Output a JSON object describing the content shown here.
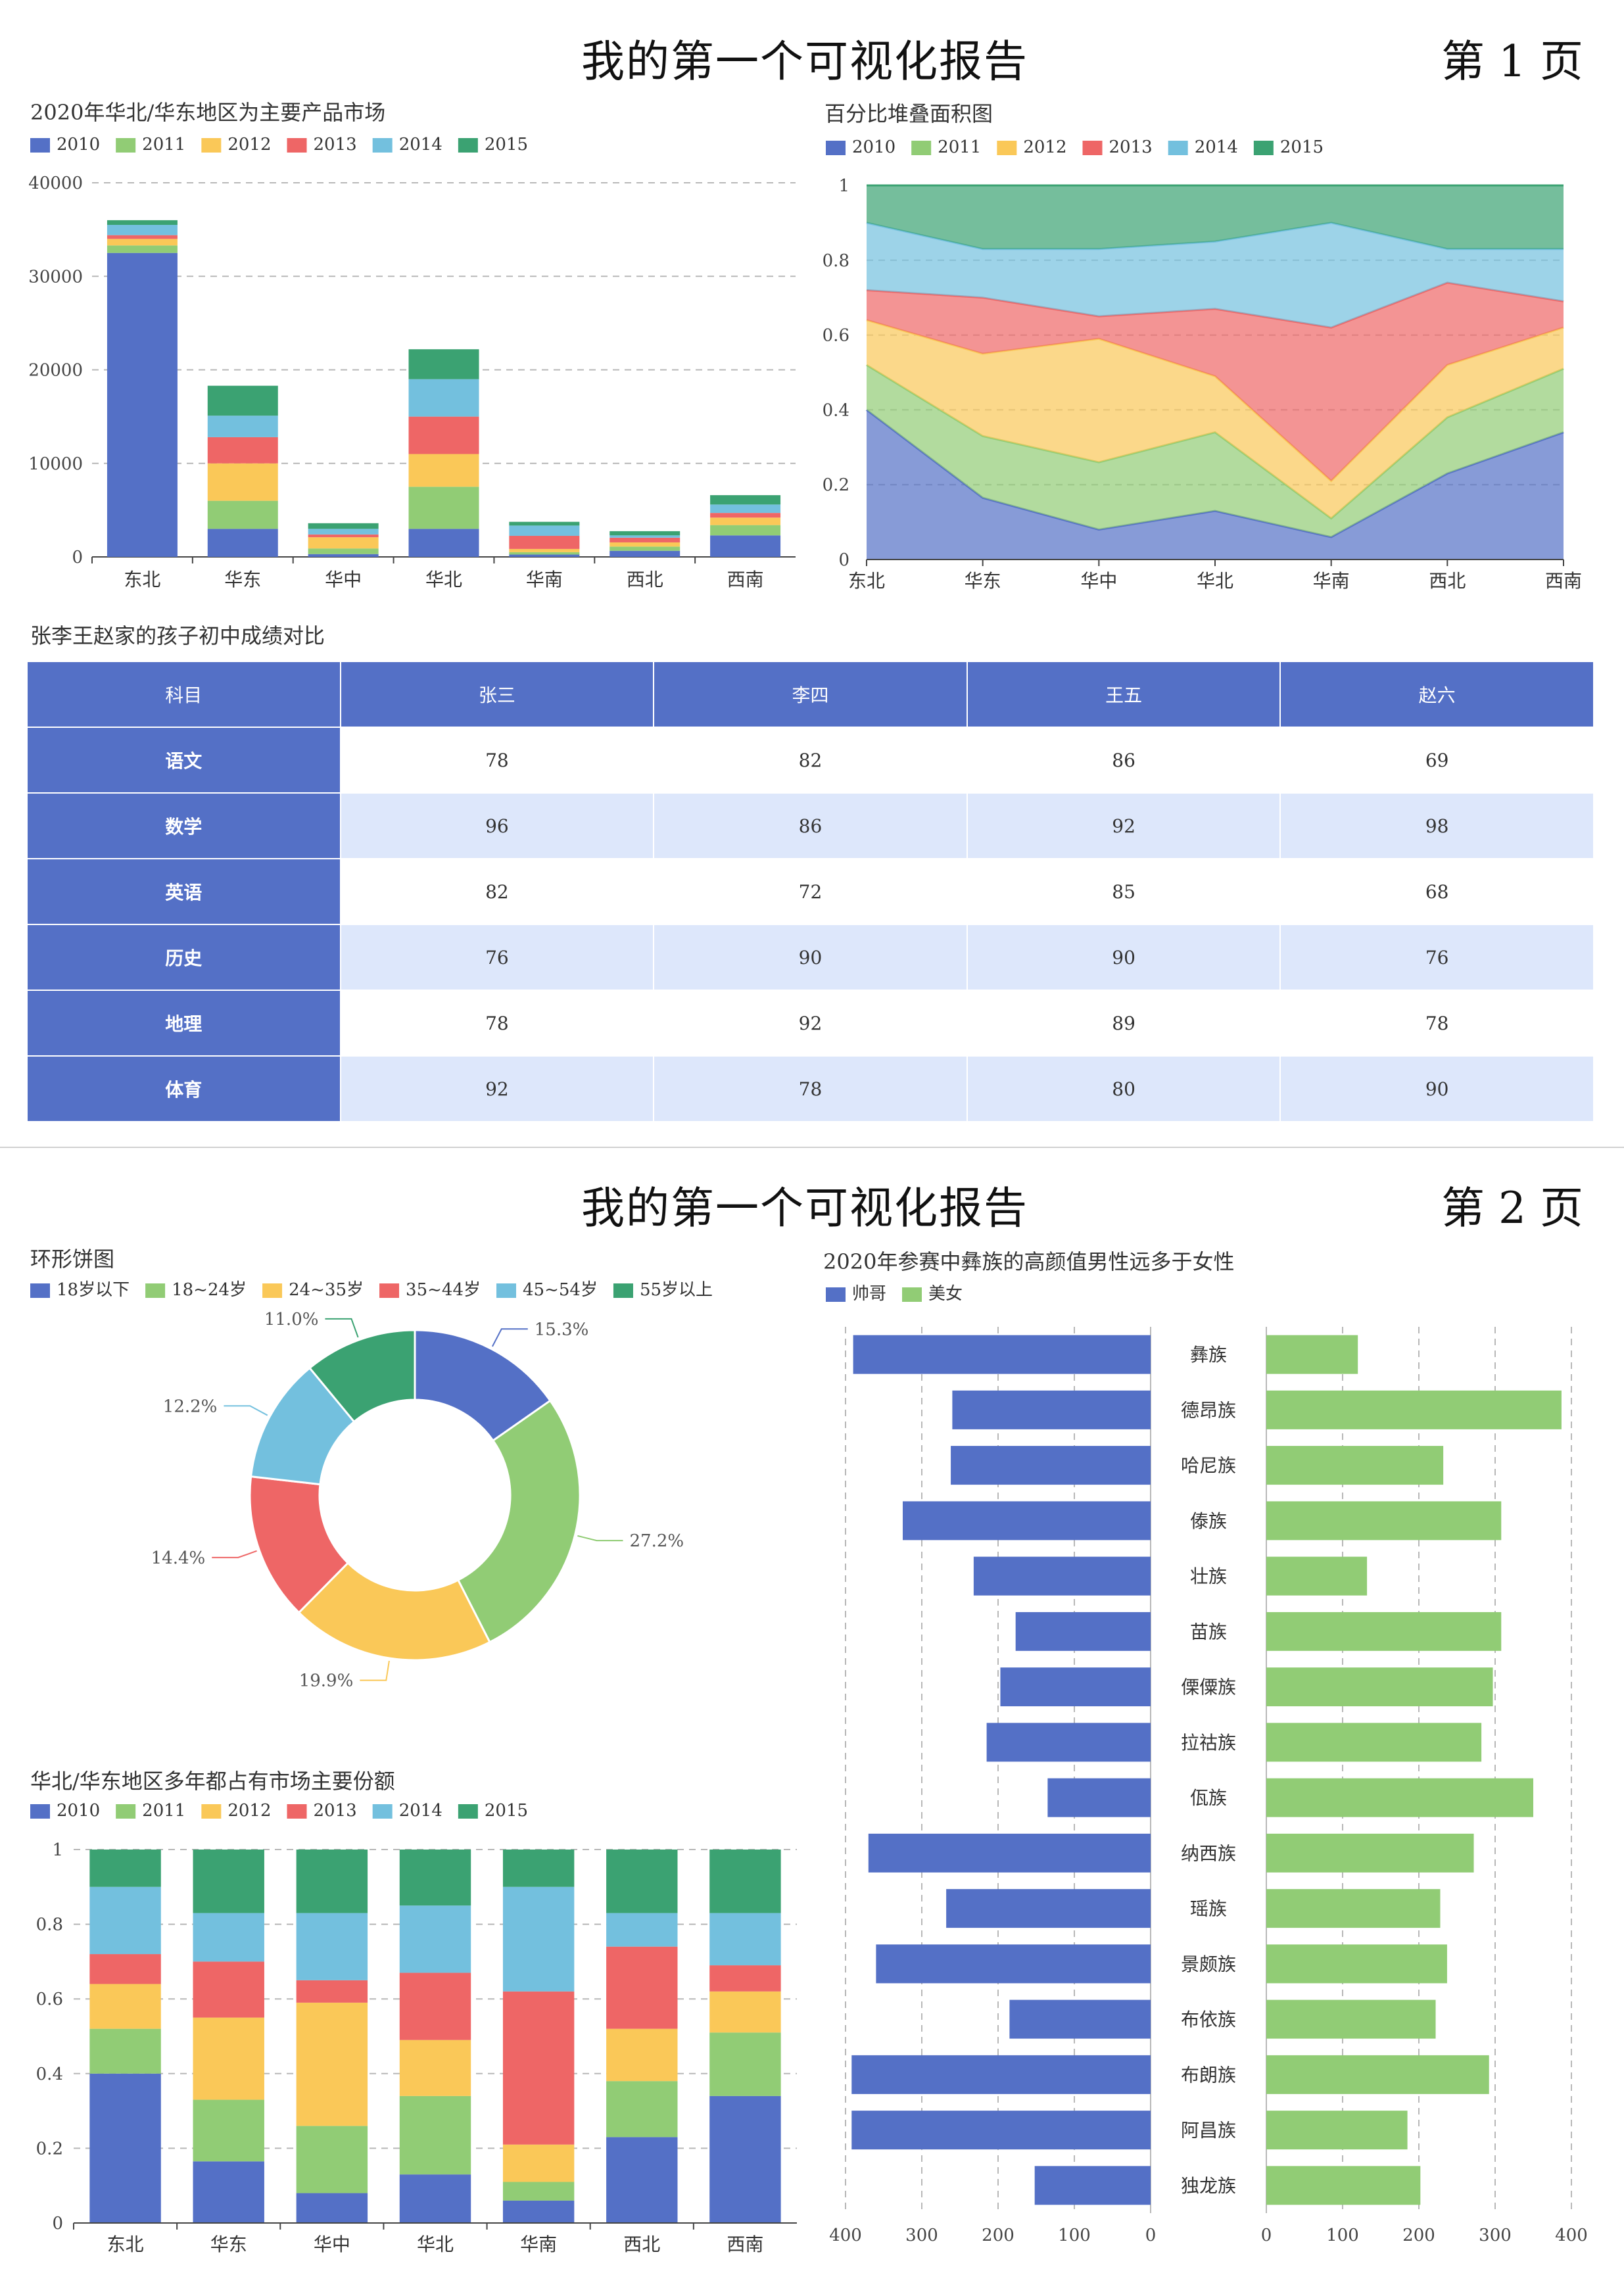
{
  "pages": [
    {
      "title": "我的第一个可视化报告",
      "page_label": "第 1 页"
    },
    {
      "title": "我的第一个可视化报告",
      "page_label": "第 2 页"
    }
  ],
  "palette": {
    "2010": "#5470c6",
    "2011": "#91cc75",
    "2012": "#fac858",
    "2013": "#ee6666",
    "2014": "#73c0de",
    "2015": "#3ba272"
  },
  "chart_data": [
    {
      "id": "stacked-bar",
      "type": "bar",
      "title": "2020年华北/华东地区为主要产品市场",
      "categories": [
        "东北",
        "华东",
        "华中",
        "华北",
        "华南",
        "西北",
        "西南"
      ],
      "ylim": [
        0,
        40000
      ],
      "yticks": [
        0,
        10000,
        20000,
        30000,
        40000
      ],
      "legend_position": "top-left",
      "series": [
        {
          "name": "2010",
          "values": [
            32500,
            3000,
            300,
            3000,
            250,
            650,
            2300
          ]
        },
        {
          "name": "2011",
          "values": [
            800,
            3000,
            600,
            4500,
            250,
            450,
            1100
          ]
        },
        {
          "name": "2012",
          "values": [
            700,
            4000,
            1200,
            3500,
            350,
            450,
            800
          ]
        },
        {
          "name": "2013",
          "values": [
            400,
            2800,
            300,
            4000,
            1400,
            500,
            500
          ]
        },
        {
          "name": "2014",
          "values": [
            1100,
            2300,
            600,
            4000,
            1100,
            250,
            900
          ]
        },
        {
          "name": "2015",
          "values": [
            500,
            3200,
            600,
            3200,
            400,
            450,
            1000
          ]
        }
      ]
    },
    {
      "id": "percent-area",
      "type": "area",
      "title": "百分比堆叠面积图",
      "categories": [
        "东北",
        "华东",
        "华中",
        "华北",
        "华南",
        "西北",
        "西南"
      ],
      "ylim": [
        0,
        1
      ],
      "yticks": [
        "0",
        "0.2",
        "0.4",
        "0.6",
        "0.8",
        "1"
      ],
      "legend_position": "top-left",
      "series": [
        {
          "name": "2010",
          "values": [
            0.4,
            0.165,
            0.08,
            0.13,
            0.06,
            0.23,
            0.34
          ]
        },
        {
          "name": "2011",
          "values": [
            0.12,
            0.165,
            0.18,
            0.21,
            0.05,
            0.15,
            0.17
          ]
        },
        {
          "name": "2012",
          "values": [
            0.12,
            0.22,
            0.33,
            0.15,
            0.1,
            0.14,
            0.11
          ]
        },
        {
          "name": "2013",
          "values": [
            0.08,
            0.15,
            0.06,
            0.18,
            0.41,
            0.22,
            0.07
          ]
        },
        {
          "name": "2014",
          "values": [
            0.18,
            0.13,
            0.18,
            0.18,
            0.28,
            0.09,
            0.14
          ]
        },
        {
          "name": "2015",
          "values": [
            0.1,
            0.17,
            0.17,
            0.15,
            0.1,
            0.17,
            0.17
          ]
        }
      ]
    },
    {
      "id": "score-table",
      "type": "table",
      "title": "张李王赵家的孩子初中成绩对比",
      "columns": [
        "科目",
        "张三",
        "李四",
        "王五",
        "赵六"
      ],
      "rows": [
        [
          "语文",
          "78",
          "82",
          "86",
          "69"
        ],
        [
          "数学",
          "96",
          "86",
          "92",
          "98"
        ],
        [
          "英语",
          "82",
          "72",
          "85",
          "68"
        ],
        [
          "历史",
          "76",
          "90",
          "90",
          "76"
        ],
        [
          "地理",
          "78",
          "92",
          "89",
          "78"
        ],
        [
          "体育",
          "92",
          "78",
          "80",
          "90"
        ]
      ]
    },
    {
      "id": "donut",
      "type": "pie",
      "title": "环形饼图",
      "legend_position": "top-left",
      "slices": [
        {
          "name": "18岁以下",
          "value": 15.3,
          "label": "15.3%",
          "color": "#5470c6"
        },
        {
          "name": "18~24岁",
          "value": 27.2,
          "label": "27.2%",
          "color": "#91cc75"
        },
        {
          "name": "24~35岁",
          "value": 19.9,
          "label": "19.9%",
          "color": "#fac858"
        },
        {
          "name": "35~44岁",
          "value": 14.4,
          "label": "14.4%",
          "color": "#ee6666"
        },
        {
          "name": "45~54岁",
          "value": 12.2,
          "label": "12.2%",
          "color": "#73c0de"
        },
        {
          "name": "55岁以上",
          "value": 11.0,
          "label": "11.0%",
          "color": "#3ba272"
        }
      ]
    },
    {
      "id": "percent-bar",
      "type": "bar",
      "title": "华北/华东地区多年都占有市场主要份额",
      "categories": [
        "东北",
        "华东",
        "华中",
        "华北",
        "华南",
        "西北",
        "西南"
      ],
      "ylim": [
        0,
        1
      ],
      "yticks": [
        "0",
        "0.2",
        "0.4",
        "0.6",
        "0.8",
        "1"
      ],
      "legend_position": "top-left",
      "series": [
        {
          "name": "2010",
          "values": [
            0.4,
            0.165,
            0.08,
            0.13,
            0.06,
            0.23,
            0.34
          ]
        },
        {
          "name": "2011",
          "values": [
            0.12,
            0.165,
            0.18,
            0.21,
            0.05,
            0.15,
            0.17
          ]
        },
        {
          "name": "2012",
          "values": [
            0.12,
            0.22,
            0.33,
            0.15,
            0.1,
            0.14,
            0.11
          ]
        },
        {
          "name": "2013",
          "values": [
            0.08,
            0.15,
            0.06,
            0.18,
            0.41,
            0.22,
            0.07
          ]
        },
        {
          "name": "2014",
          "values": [
            0.18,
            0.13,
            0.18,
            0.18,
            0.28,
            0.09,
            0.14
          ]
        },
        {
          "name": "2015",
          "values": [
            0.1,
            0.17,
            0.17,
            0.15,
            0.1,
            0.17,
            0.17
          ]
        }
      ]
    },
    {
      "id": "butterfly",
      "type": "bar",
      "title": "2020年参赛中彝族的高颜值男性远多于女性",
      "categories": [
        "彝族",
        "德昂族",
        "哈尼族",
        "傣族",
        "壮族",
        "苗族",
        "傈僳族",
        "拉祜族",
        "佤族",
        "纳西族",
        "瑶族",
        "景颇族",
        "布依族",
        "布朗族",
        "阿昌族",
        "独龙族"
      ],
      "xticks": [
        "400",
        "300",
        "200",
        "100",
        "0"
      ],
      "xticks_right": [
        "0",
        "100",
        "200",
        "300",
        "400"
      ],
      "xlim": [
        0,
        400
      ],
      "legend_position": "top-left",
      "series": [
        {
          "name": "帅哥",
          "color": "#5470c6",
          "values": [
            390,
            260,
            262,
            325,
            232,
            177,
            197,
            215,
            135,
            370,
            268,
            360,
            185,
            392,
            392,
            152
          ]
        },
        {
          "name": "美女",
          "color": "#91cc75",
          "values": [
            120,
            387,
            232,
            308,
            132,
            308,
            297,
            282,
            350,
            272,
            228,
            237,
            222,
            292,
            185,
            202
          ]
        }
      ]
    }
  ]
}
